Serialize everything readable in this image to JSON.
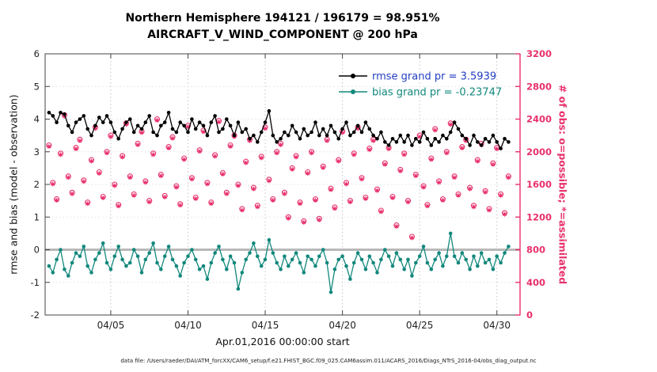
{
  "title": {
    "line1": "Northern Hemisphere 194121 / 196179 = 98.951%",
    "line2": "AIRCRAFT_V_WIND_COMPONENT @ 200 hPa"
  },
  "footer": {
    "data_file": "data file: /Users/raeder/DAI/ATM_forcXX/CAM6_setup/f.e21.FHIST_BGC.f09_025.CAM6assim.011/ACARS_2016/Diags_NTrS_2016-04/obs_diag_output.nc"
  },
  "legend": {
    "rmse_label": "rmse grand pr = 3.5939",
    "rmse_text_color": "#2540c0",
    "bias_label": "bias grand pr = -0.23747",
    "bias_text_color": "#12887c"
  },
  "chart_data": {
    "type": "line",
    "title": "Northern Hemisphere 194121 / 196179 = 98.951%",
    "subtitle": "AIRCRAFT_V_WIND_COMPONENT @ 200 hPa",
    "xlabel": "Apr.01,2016 00:00:00 start",
    "ylabel_left": "rmse and bias (model - observation)",
    "ylabel_right": "# of obs: o=possible; *=assimilated",
    "ylim_left": [
      -2,
      6
    ],
    "ylim_right": [
      0,
      3200
    ],
    "yticks_left": [
      -2,
      -1,
      0,
      1,
      2,
      3,
      4,
      5,
      6
    ],
    "yticks_right": [
      0,
      400,
      800,
      1200,
      1600,
      2000,
      2400,
      2800,
      3200
    ],
    "xtick_labels": [
      "04/05",
      "04/10",
      "04/15",
      "04/20",
      "04/25",
      "04/30"
    ],
    "xtick_t": [
      16,
      36,
      56,
      76,
      96,
      116
    ],
    "x_domain": [
      -1,
      122
    ],
    "samples_per_day": 4,
    "grid": true,
    "zero_line_color": "#b8b8b8",
    "axis_color": "#444444",
    "right_axis_color": "#e8316b",
    "series": [
      {
        "name": "rmse",
        "legend": "rmse grand pr = 3.5939",
        "axis": "left",
        "color": "#000000",
        "marker": "dot",
        "values": [
          4.2,
          4.1,
          3.9,
          4.2,
          4.15,
          3.8,
          3.6,
          3.9,
          4.0,
          4.1,
          3.7,
          3.5,
          3.8,
          4.05,
          3.9,
          4.1,
          3.9,
          3.6,
          3.4,
          3.7,
          3.9,
          4.0,
          3.6,
          3.8,
          3.7,
          3.9,
          4.1,
          3.6,
          3.5,
          3.8,
          3.9,
          4.2,
          3.7,
          3.6,
          3.9,
          3.8,
          3.6,
          4.0,
          3.7,
          3.9,
          3.8,
          3.5,
          3.9,
          4.1,
          3.6,
          3.7,
          4.0,
          3.8,
          3.5,
          3.9,
          3.6,
          3.7,
          3.4,
          3.5,
          3.3,
          3.6,
          3.9,
          4.25,
          3.5,
          3.3,
          3.4,
          3.6,
          3.5,
          3.8,
          3.6,
          3.4,
          3.7,
          3.5,
          3.6,
          3.9,
          3.5,
          3.7,
          3.5,
          3.8,
          3.6,
          3.4,
          3.7,
          3.9,
          3.5,
          3.6,
          3.8,
          3.6,
          3.9,
          3.7,
          3.5,
          3.4,
          3.6,
          3.3,
          3.2,
          3.4,
          3.3,
          3.5,
          3.3,
          3.5,
          3.2,
          3.4,
          3.3,
          3.6,
          3.4,
          3.2,
          3.4,
          3.3,
          3.5,
          3.4,
          3.6,
          3.9,
          3.7,
          3.5,
          3.4,
          3.2,
          3.5,
          3.3,
          3.2,
          3.4,
          3.3,
          3.5,
          3.3,
          3.1,
          3.4,
          3.3
        ]
      },
      {
        "name": "bias",
        "legend": "bias grand pr = -0.23747",
        "axis": "left",
        "color": "#12887c",
        "marker": "dot",
        "values": [
          -0.5,
          -0.7,
          -0.3,
          0.0,
          -0.6,
          -0.8,
          -0.4,
          -0.1,
          -0.2,
          0.1,
          -0.5,
          -0.7,
          -0.3,
          -0.1,
          0.2,
          -0.4,
          -0.6,
          -0.2,
          0.1,
          -0.3,
          -0.5,
          -0.4,
          0.0,
          -0.2,
          -0.7,
          -0.3,
          -0.1,
          0.2,
          -0.4,
          -0.6,
          -0.2,
          0.1,
          -0.3,
          -0.5,
          -0.8,
          -0.4,
          -0.2,
          0.0,
          -0.3,
          -0.6,
          -0.5,
          -0.9,
          -0.4,
          -0.1,
          0.1,
          -0.3,
          -0.6,
          -0.2,
          -0.4,
          -1.2,
          -0.7,
          -0.3,
          -0.1,
          0.2,
          -0.2,
          -0.5,
          -0.3,
          0.3,
          -0.1,
          -0.4,
          -0.6,
          -0.2,
          -0.5,
          -0.3,
          -0.1,
          -0.4,
          -0.7,
          -0.2,
          -0.3,
          -0.5,
          -0.2,
          0.0,
          -0.4,
          -1.3,
          -0.6,
          -0.3,
          -0.2,
          -0.5,
          -0.9,
          -0.4,
          -0.1,
          -0.3,
          -0.6,
          -0.2,
          -0.4,
          -0.7,
          -0.3,
          0.0,
          -0.2,
          -0.5,
          -0.1,
          -0.3,
          -0.6,
          -0.3,
          -0.8,
          -0.4,
          -0.2,
          0.1,
          -0.4,
          -0.6,
          -0.3,
          -0.1,
          -0.5,
          -0.2,
          0.5,
          -0.2,
          -0.4,
          -0.1,
          -0.3,
          -0.6,
          -0.2,
          -0.5,
          -0.1,
          -0.4,
          -0.3,
          -0.6,
          -0.2,
          -0.4,
          -0.1,
          0.1
        ]
      },
      {
        "name": "obs_possible",
        "legend": "o=possible",
        "axis": "right",
        "color": "#e8316b",
        "marker": "circle",
        "values": [
          2080,
          1620,
          1420,
          1980,
          2450,
          1700,
          1500,
          2050,
          2150,
          1650,
          1380,
          1900,
          2300,
          1750,
          1450,
          2000,
          2200,
          1600,
          1350,
          1950,
          2350,
          1700,
          1480,
          2100,
          2250,
          1640,
          1400,
          1980,
          2400,
          1720,
          1460,
          2060,
          2180,
          1580,
          1360,
          1920,
          2320,
          1680,
          1440,
          2020,
          2260,
          1620,
          1380,
          1960,
          2380,
          1740,
          1500,
          2080,
          2200,
          1600,
          1300,
          1880,
          2150,
          1560,
          1340,
          1940,
          2300,
          1660,
          1420,
          2000,
          2100,
          1500,
          1200,
          1800,
          1950,
          1380,
          1150,
          1750,
          2000,
          1420,
          1180,
          1820,
          2150,
          1550,
          1320,
          1900,
          2250,
          1620,
          1400,
          1980,
          2300,
          1680,
          1440,
          2040,
          2150,
          1540,
          1280,
          1860,
          2050,
          1450,
          1100,
          1780,
          1980,
          1400,
          960,
          1720,
          2200,
          1580,
          1350,
          1920,
          2280,
          1640,
          1420,
          2000,
          2350,
          1700,
          1480,
          2060,
          2150,
          1560,
          1340,
          1900,
          2100,
          1520,
          1300,
          1860,
          2050,
          1480,
          1250,
          1700
        ]
      },
      {
        "name": "obs_assimilated",
        "legend": "*=assimilated",
        "axis": "right",
        "color": "#e8316b",
        "marker": "asterisk",
        "values": [
          2065,
          1605,
          1405,
          1965,
          2435,
          1685,
          1485,
          2035,
          2135,
          1635,
          1365,
          1885,
          2285,
          1735,
          1435,
          1985,
          2185,
          1585,
          1335,
          1935,
          2335,
          1685,
          1465,
          2085,
          2235,
          1625,
          1385,
          1965,
          2385,
          1705,
          1445,
          2045,
          2165,
          1565,
          1345,
          1905,
          2305,
          1665,
          1425,
          2005,
          2245,
          1605,
          1365,
          1945,
          2365,
          1725,
          1485,
          2065,
          2185,
          1585,
          1285,
          1865,
          2135,
          1545,
          1325,
          1925,
          2285,
          1645,
          1405,
          1985,
          2085,
          1485,
          1185,
          1785,
          1935,
          1365,
          1135,
          1735,
          1985,
          1405,
          1165,
          1805,
          2135,
          1535,
          1305,
          1885,
          2235,
          1605,
          1385,
          1965,
          2285,
          1665,
          1425,
          2025,
          2135,
          1525,
          1265,
          1845,
          2035,
          1435,
          1085,
          1765,
          1965,
          1385,
          945,
          1705,
          2185,
          1565,
          1335,
          1905,
          2265,
          1625,
          1405,
          1985,
          2335,
          1685,
          1465,
          2045,
          2135,
          1545,
          1325,
          1885,
          2085,
          1505,
          1285,
          1845,
          2035,
          1465,
          1235,
          1685
        ]
      }
    ]
  }
}
